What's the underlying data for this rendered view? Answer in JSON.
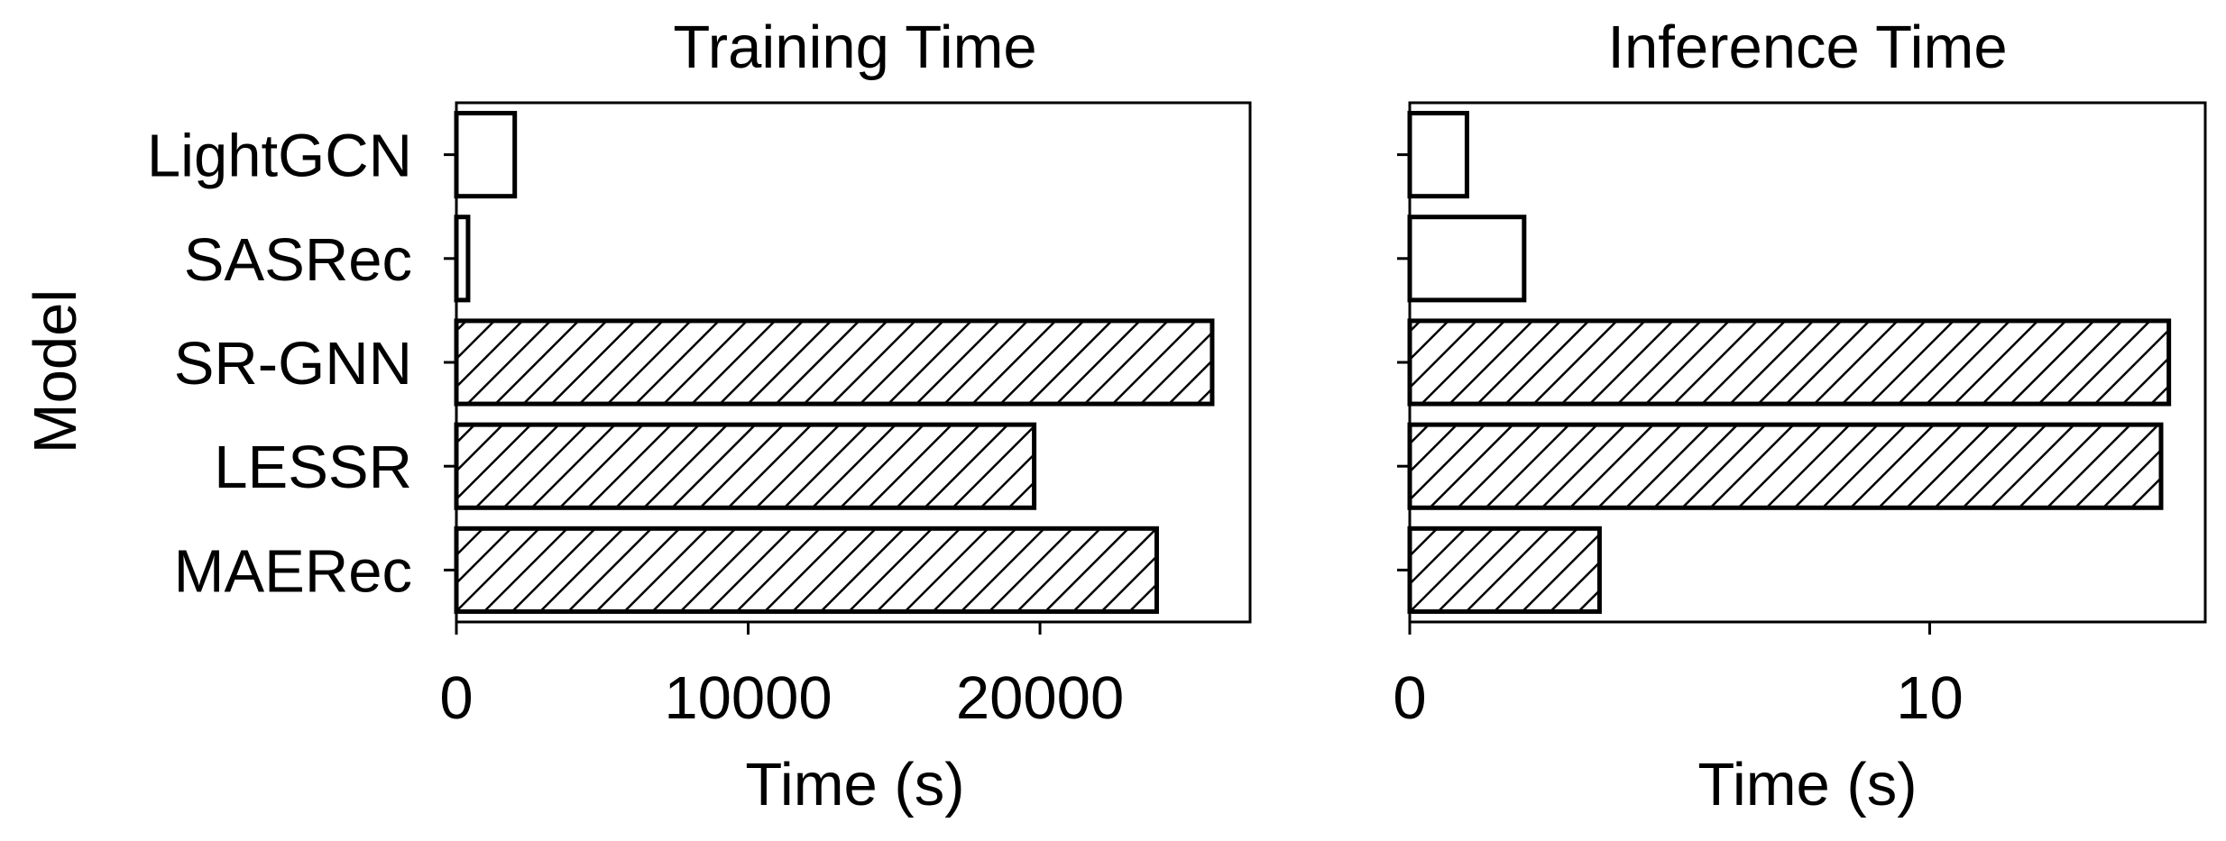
{
  "chart_data": {
    "type": "bar",
    "orientation": "horizontal",
    "ylabel": "Model",
    "categories": [
      "LightGCN",
      "SASRec",
      "SR-GNN",
      "LESSR",
      "MAERec"
    ],
    "hatched": [
      false,
      false,
      true,
      true,
      true
    ],
    "colors": {
      "edge": "#000000",
      "fill": "#ffffff",
      "hatch": "#000000"
    },
    "panels": [
      {
        "title": "Training Time",
        "xlabel": "Time (s)",
        "xlim": [
          0,
          27200
        ],
        "xticks": [
          0,
          10000,
          20000
        ],
        "xtick_labels": [
          "0",
          "10000",
          "20000"
        ],
        "values": [
          2000,
          400,
          25900,
          19800,
          24000
        ]
      },
      {
        "title": "Inference Time",
        "xlabel": "Time (s)",
        "xlim": [
          0,
          15.3
        ],
        "xticks": [
          0,
          10
        ],
        "xtick_labels": [
          "0",
          "10"
        ],
        "values": [
          1.1,
          2.2,
          14.6,
          14.45,
          3.65
        ]
      }
    ]
  }
}
